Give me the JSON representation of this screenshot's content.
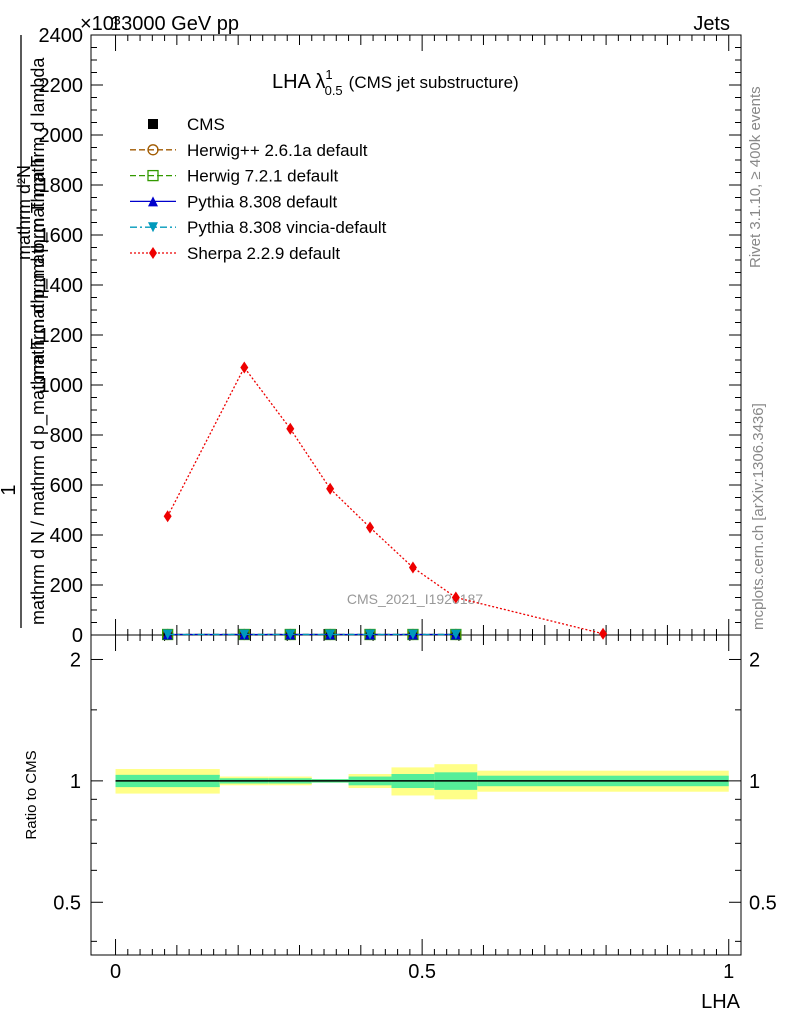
{
  "header": {
    "energy": "13000 GeV pp",
    "process": "Jets",
    "exponent": "×10³"
  },
  "side_text": {
    "rivet": "Rivet 3.1.10, ≥ 400k events",
    "mcplots": "mcplots.cern.ch [arXiv:1306.3436]"
  },
  "colors": {
    "cms": "#000000",
    "herwigpp": "#a05a00",
    "herwig7": "#339900",
    "pythia": "#0000cc",
    "vincia": "#0099bb",
    "sherpa": "#ee0000",
    "band_inner": "#55ee99",
    "band_outer": "#ffff88"
  },
  "chart_data": [
    {
      "type": "line",
      "title": "LHA λ",
      "title_super": "1",
      "title_sub": "0.5",
      "title_suffix": "(CMS jet substructure)",
      "ylabel_top": "1",
      "ylabel_bottom": "mathrm d N / mathrm d p_mathrm T mathrm d p_mathrm T",
      "ylabel_numer": "mathrm d²N",
      "ylabel_denom": "mathrm d p_mathrm T mathrm d lambda",
      "xlim": [
        -0.04,
        1.02
      ],
      "ylim": [
        0,
        2400
      ],
      "y_scale_note": "×10³",
      "y_ticks": [
        "0",
        "200",
        "400",
        "600",
        "800",
        "1000",
        "1200",
        "1400",
        "1600",
        "1800",
        "2000",
        "2200",
        "2400"
      ],
      "watermark": "CMS_2021_I1920187",
      "legend_position": "top-left",
      "series": [
        {
          "name": "CMS",
          "key": "cms",
          "marker": "square",
          "line": "none",
          "x": [
            0.085,
            0.21,
            0.285,
            0.35,
            0.415,
            0.485,
            0.555
          ],
          "y": [
            2,
            2,
            2,
            2,
            2,
            2,
            2
          ]
        },
        {
          "name": "Herwig++ 2.6.1a default",
          "key": "herwigpp",
          "marker": "circle-open",
          "line": "dashed",
          "x": [
            0.085,
            0.21,
            0.285,
            0.35,
            0.415,
            0.485,
            0.555
          ],
          "y": [
            2,
            2,
            2,
            2,
            2,
            2,
            2
          ]
        },
        {
          "name": "Herwig 7.2.1 default",
          "key": "herwig7",
          "marker": "square-open",
          "line": "dashed",
          "x": [
            0.085,
            0.21,
            0.285,
            0.35,
            0.415,
            0.485,
            0.555
          ],
          "y": [
            2,
            2,
            2,
            2,
            2,
            2,
            2
          ]
        },
        {
          "name": "Pythia 8.308 default",
          "key": "pythia",
          "marker": "triangle-up",
          "line": "solid",
          "x": [
            0.085,
            0.21,
            0.285,
            0.35,
            0.415,
            0.485,
            0.555
          ],
          "y": [
            2,
            2,
            2,
            2,
            2,
            2,
            2
          ]
        },
        {
          "name": "Pythia 8.308 vincia-default",
          "key": "vincia",
          "marker": "triangle-down",
          "line": "dashdot",
          "x": [
            0.085,
            0.21,
            0.285,
            0.35,
            0.415,
            0.485,
            0.555
          ],
          "y": [
            2,
            2,
            2,
            2,
            2,
            2,
            2
          ]
        },
        {
          "name": "Sherpa 2.2.9 default",
          "key": "sherpa",
          "marker": "diamond",
          "line": "dotted",
          "x": [
            0.085,
            0.21,
            0.285,
            0.35,
            0.415,
            0.485,
            0.555,
            0.795
          ],
          "y": [
            475,
            1070,
            825,
            585,
            430,
            270,
            150,
            5
          ]
        }
      ]
    },
    {
      "type": "line",
      "ylabel": "Ratio to CMS",
      "xlabel": "LHA",
      "xlim": [
        -0.04,
        1.02
      ],
      "ylim": [
        0.37,
        2.3
      ],
      "y_ticks": [
        "0.5",
        "1",
        "2"
      ],
      "x_ticks": [
        "0",
        "0.5",
        "1"
      ],
      "reference": 1,
      "bands": {
        "edges": [
          0,
          0.17,
          0.25,
          0.32,
          0.38,
          0.45,
          0.52,
          0.59,
          1.0
        ],
        "inner": [
          0.035,
          0.015,
          0.015,
          0.01,
          0.025,
          0.04,
          0.05,
          0.03
        ],
        "outer": [
          0.07,
          0.025,
          0.025,
          0.01,
          0.04,
          0.08,
          0.1,
          0.06
        ]
      }
    }
  ]
}
